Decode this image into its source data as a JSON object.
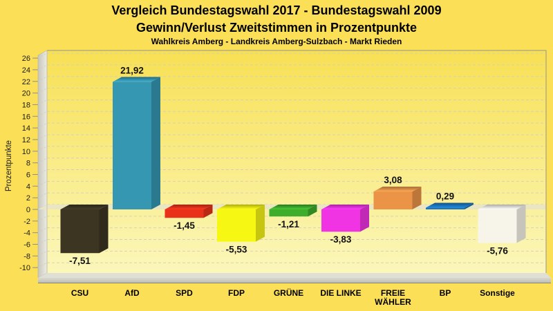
{
  "window": {
    "background": "#FBDF57"
  },
  "chart_data": {
    "type": "bar",
    "title": "Vergleich Bundestagswahl 2017 - Bundestagswahl 2009",
    "subtitle": "Gewinn/Verlust Zweitstimmen in Prozentpunkte",
    "caption": "Wahlkreis Amberg - Landkreis Amberg-Sulzbach - Markt Rieden",
    "ylabel": "Prozentpunkte",
    "xlabel": "",
    "ylim": [
      -10,
      26
    ],
    "ytick_step": 2,
    "grid": true,
    "legend": "none",
    "decimal_separator": ",",
    "categories": [
      "CSU",
      "AfD",
      "SPD",
      "FDP",
      "GRÜNE",
      "DIE LINKE",
      "FREIE\nWÄHLER",
      "BP",
      "Sonstige"
    ],
    "values": [
      -7.51,
      21.92,
      -1.45,
      -5.53,
      -1.21,
      -3.83,
      3.08,
      0.29,
      -5.76
    ],
    "value_labels": [
      "-7,51",
      "21,92",
      "-1,45",
      "-5,53",
      "-1,21",
      "-3,83",
      "3,08",
      "0,29",
      "-5,76"
    ],
    "bar_colors": [
      "#3B3522",
      "#3697B3",
      "#E93119",
      "#F7F714",
      "#3EAD2B",
      "#F033E3",
      "#EB9347",
      "#1B76BE",
      "#F7F5EA"
    ]
  },
  "colors": {
    "page_background": "#FBDF57",
    "plot_background_top": "#F8E054",
    "plot_background_bottom": "#FBF7BA",
    "grid_line": "#CFCFBA",
    "plot_border": "#95958B",
    "wall_dark": "#C5C5BB",
    "wall_light": "#EDEDE4",
    "floor_top": "#DFDFD6",
    "floor_front_light": "#D8D8CE",
    "floor_front_dark": "#BFBFB5",
    "floor_edge": "#83837A",
    "zero_plane": "#E8E5C8",
    "title_text": "#000000",
    "tick_text": "#1A1A1A",
    "value_label_text": "#111111"
  }
}
